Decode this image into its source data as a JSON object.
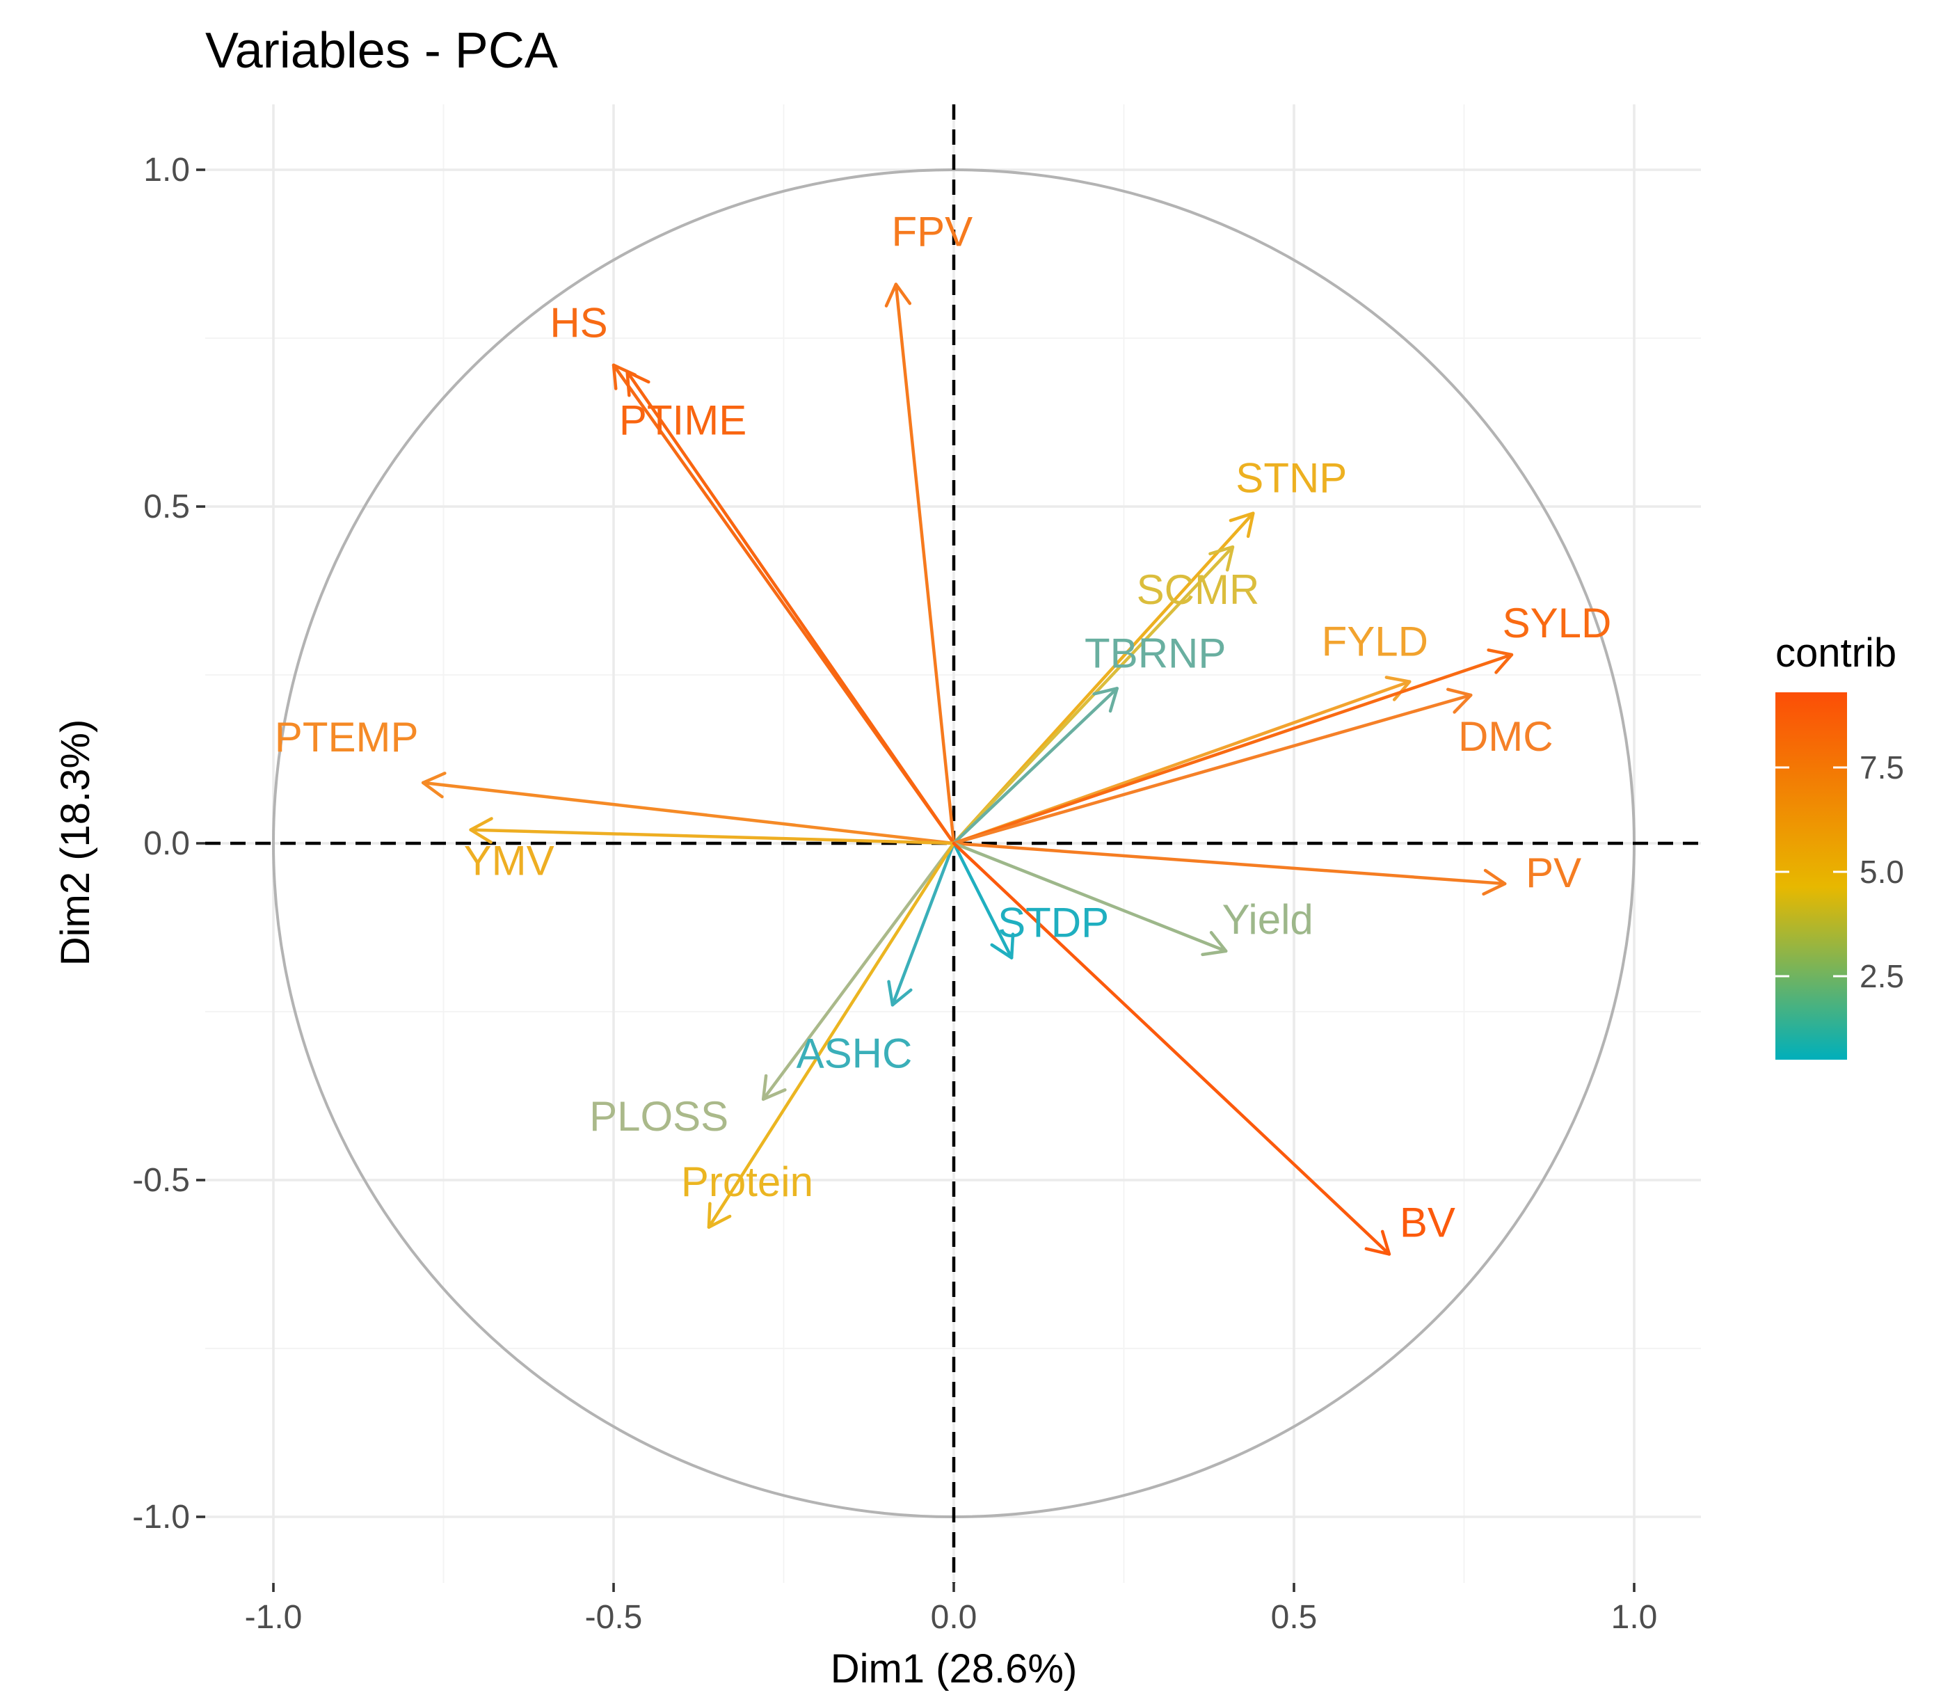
{
  "chart_data": {
    "type": "scatter",
    "subtype": "pca-variable-correlation-circle",
    "title": "Variables - PCA",
    "xlabel": "Dim1 (28.6%)",
    "ylabel": "Dim2 (18.3%)",
    "xlim": [
      -1.0,
      1.0
    ],
    "ylim": [
      -1.0,
      1.0
    ],
    "xticks": [
      -1.0,
      -0.5,
      0.0,
      0.5,
      1.0
    ],
    "yticks": [
      -1.0,
      -0.5,
      0.0,
      0.5,
      1.0
    ],
    "xtick_labels": [
      "-1.0",
      "-0.5",
      "0.0",
      "0.5",
      "1.0"
    ],
    "ytick_labels": [
      "-1.0",
      "-0.5",
      "0.0",
      "0.5",
      "1.0"
    ],
    "grid": true,
    "unit_circle": true,
    "reference_lines": [
      "x=0 dashed",
      "y=0 dashed"
    ],
    "legend": {
      "title": "contrib",
      "placement": "right",
      "range": [
        0.5,
        9.3
      ],
      "ticks": [
        2.5,
        5.0,
        7.5
      ],
      "tick_labels": [
        "2.5",
        "5.0",
        "7.5"
      ],
      "colors": {
        "low": "#00AFBB",
        "mid": "#E7B800",
        "high": "#FC4E07"
      },
      "midpoint": 5.0
    },
    "variables": [
      {
        "name": "FPV",
        "x": -0.085,
        "y": 0.83,
        "contrib": 8.5,
        "color": "#F67A1E"
      },
      {
        "name": "HS",
        "x": -0.5,
        "y": 0.71,
        "contrib": 9.0,
        "color": "#F76A14"
      },
      {
        "name": "PTIME",
        "x": -0.48,
        "y": 0.7,
        "contrib": 9.2,
        "color": "#F96510"
      },
      {
        "name": "STNP",
        "x": 0.44,
        "y": 0.49,
        "contrib": 5.5,
        "color": "#EDB020"
      },
      {
        "name": "SCMR",
        "x": 0.41,
        "y": 0.44,
        "contrib": 4.5,
        "color": "#DBBD3C"
      },
      {
        "name": "TBRNP",
        "x": 0.24,
        "y": 0.23,
        "contrib": 2.0,
        "color": "#69AFA0"
      },
      {
        "name": "FYLD",
        "x": 0.67,
        "y": 0.24,
        "contrib": 6.5,
        "color": "#F2A32E"
      },
      {
        "name": "SYLD",
        "x": 0.82,
        "y": 0.28,
        "contrib": 9.0,
        "color": "#F96A12"
      },
      {
        "name": "DMC",
        "x": 0.76,
        "y": 0.22,
        "contrib": 8.0,
        "color": "#F58027"
      },
      {
        "name": "PTEMP",
        "x": -0.78,
        "y": 0.09,
        "contrib": 7.8,
        "color": "#F58A26"
      },
      {
        "name": "YMV",
        "x": -0.71,
        "y": 0.02,
        "contrib": 6.3,
        "color": "#EEAE22"
      },
      {
        "name": "PV",
        "x": 0.81,
        "y": -0.06,
        "contrib": 8.3,
        "color": "#F57D22"
      },
      {
        "name": "Yield",
        "x": 0.4,
        "y": -0.16,
        "contrib": 3.0,
        "color": "#9DB78A"
      },
      {
        "name": "STDP",
        "x": 0.085,
        "y": -0.17,
        "contrib": 0.8,
        "color": "#1FAFC0"
      },
      {
        "name": "ASHC",
        "x": -0.09,
        "y": -0.24,
        "contrib": 1.2,
        "color": "#3AAFB9"
      },
      {
        "name": "PLOSS",
        "x": -0.28,
        "y": -0.38,
        "contrib": 3.2,
        "color": "#AAB98A"
      },
      {
        "name": "Protein",
        "x": -0.36,
        "y": -0.57,
        "contrib": 5.8,
        "color": "#EBB521"
      },
      {
        "name": "BV",
        "x": 0.64,
        "y": -0.61,
        "contrib": 9.3,
        "color": "#FC5A0C"
      }
    ]
  }
}
